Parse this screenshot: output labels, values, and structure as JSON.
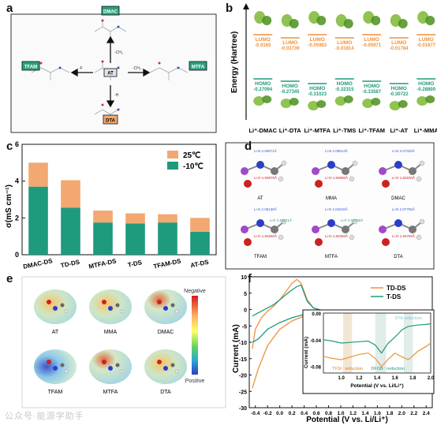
{
  "panels": {
    "a": {
      "label": "a",
      "center": "AT",
      "nodes": {
        "top": "DMAC",
        "left": "TFAM",
        "right": "MTFA",
        "bottom": "DTA"
      },
      "arrows": {
        "top": "-CH₃",
        "left": "-F",
        "right": "-CH₃",
        "bottom": "-H"
      }
    },
    "b": {
      "label": "b",
      "ylabel": "Energy (Hartree)",
      "lumo_label": "LUMO",
      "homo_label": "HOMO",
      "columns": [
        {
          "name": "Li⁺-DMAC",
          "lumo": "-0.0165",
          "homo": "-0.27094"
        },
        {
          "name": "Li⁺-DTA",
          "lumo": "-0.03739",
          "homo": "-0.27345"
        },
        {
          "name": "Li⁺-MTFA",
          "lumo": "-0.05983",
          "homo": "-0.31023"
        },
        {
          "name": "Li⁺-TMS",
          "lumo": "-0.01814",
          "homo": "-0.32315"
        },
        {
          "name": "Li⁺-TFAM",
          "lumo": "-0.05971",
          "homo": "-0.33587"
        },
        {
          "name": "Li⁺-AT",
          "lumo": "-0.01784",
          "homo": "-0.30722"
        },
        {
          "name": "Li⁺-MMA",
          "lumo": "-0.01677",
          "homo": "-0.28800"
        }
      ]
    },
    "c": {
      "label": "c",
      "ylabel": "σ(mS cm⁻¹)",
      "legend": [
        "25℃",
        "-10℃"
      ],
      "colors": {
        "warm": "#f2a870",
        "cold": "#1e9a7c"
      }
    },
    "d": {
      "label": "d",
      "molecules": [
        {
          "name": "AT",
          "annotations": [
            "Li-N 2.05971Å",
            "Li-O 1.83870Å"
          ]
        },
        {
          "name": "MMA",
          "annotations": [
            "Li-N 2.08513Å",
            "Li-O 1.83660Å"
          ]
        },
        {
          "name": "DMAC",
          "annotations": [
            "Li-N 2.07320Å",
            "Li-O 1.83230Å"
          ]
        },
        {
          "name": "TFAM",
          "annotations": [
            "Li-N 2.05138Å",
            "Li-F 2.01171Å",
            "Li-O 1.83260Å"
          ]
        },
        {
          "name": "MTFA",
          "annotations": [
            "Li-N 2.04016Å",
            "Li-F 2.00780Å",
            "Li-O 1.83260Å"
          ]
        },
        {
          "name": "DTA",
          "annotations": [
            "Li-N 2.07755Å",
            "Li-O 1.84762Å"
          ]
        }
      ]
    },
    "e": {
      "label": "e",
      "molecules": [
        "AT",
        "MMA",
        "DMAC",
        "TFAM",
        "MTFA",
        "DTA"
      ],
      "scale_top": "Negative",
      "scale_bottom": "Positive"
    },
    "f": {
      "label": "f",
      "ylabel": "Current (mA)",
      "xlabel": "Potential (V vs. Li/Li⁺)",
      "legend": [
        "TD-DS",
        "T-DS"
      ],
      "colors": {
        "td": "#f0913a",
        "t": "#1e9a7c"
      },
      "inset": {
        "ylabel": "Current (mA)",
        "xlabel": "Potential (V vs. Li/Li⁺)",
        "annotations": [
          "TFSI⁻ reduction",
          "DFOB⁻ reduction",
          "DTA reduction"
        ]
      }
    }
  },
  "watermark": "公众号·能源学助手",
  "chart_data": [
    {
      "type": "bar",
      "categories": [
        "DMAC-DS",
        "TD-DS",
        "MTFA-DS",
        "T-DS",
        "TFAM-DS",
        "AT-DS"
      ],
      "series": [
        {
          "name": "-10℃",
          "values": [
            3.7,
            2.55,
            1.75,
            1.7,
            1.75,
            1.25
          ]
        },
        {
          "name": "25℃",
          "values": [
            1.3,
            1.5,
            0.65,
            0.55,
            0.45,
            0.75
          ]
        }
      ],
      "stacked": true,
      "ylabel": "σ(mS cm⁻¹)",
      "ylim": [
        0,
        6
      ],
      "yticks": [
        0,
        2,
        4,
        6
      ],
      "legend": "top-right"
    },
    {
      "type": "line",
      "xlabel": "Potential (V vs. Li/Li⁺)",
      "ylabel": "Current (mA)",
      "xlim": [
        -0.5,
        2.5
      ],
      "ylim": [
        -30,
        10
      ],
      "xticks": [
        -0.4,
        -0.2,
        0.0,
        0.2,
        0.4,
        0.6,
        0.8,
        1.0,
        1.2,
        1.4,
        1.6,
        1.8,
        2.0,
        2.2,
        2.4
      ],
      "yticks": [
        -30,
        -25,
        -20,
        -15,
        -10,
        -5,
        0,
        5,
        10
      ],
      "legend": "top-right",
      "series": [
        {
          "name": "TD-DS",
          "x": [
            -0.45,
            -0.4,
            -0.3,
            -0.2,
            -0.1,
            0.0,
            0.1,
            0.2,
            0.28,
            0.35,
            0.45,
            0.55,
            0.7,
            1.0,
            1.5,
            2.0,
            2.0,
            1.5,
            1.0,
            0.6,
            0.4,
            0.2,
            0.0,
            -0.2,
            -0.35,
            -0.45
          ],
          "y": [
            -12,
            -6,
            -2.5,
            -0.5,
            1,
            3,
            5.5,
            8,
            9.2,
            8,
            3,
            0.5,
            -0.5,
            -0.5,
            -0.4,
            -0.3,
            -0.5,
            -0.6,
            -0.8,
            -1.2,
            -2,
            -3.5,
            -6,
            -11,
            -18,
            -24
          ]
        },
        {
          "name": "T-DS",
          "x": [
            -0.45,
            -0.4,
            -0.3,
            -0.2,
            -0.1,
            0.0,
            0.1,
            0.2,
            0.28,
            0.35,
            0.45,
            0.55,
            0.7,
            1.0,
            1.5,
            2.0,
            2.0,
            1.5,
            1.0,
            0.6,
            0.4,
            0.2,
            0.0,
            -0.2,
            -0.35,
            -0.45
          ],
          "y": [
            -2,
            -1.5,
            -0.5,
            0.5,
            1.5,
            3,
            4.5,
            6,
            7,
            7.5,
            2.5,
            0.5,
            -0.3,
            -0.4,
            -0.3,
            -0.2,
            -0.4,
            -0.5,
            -0.6,
            -1,
            -1.5,
            -2.5,
            -4,
            -6,
            -9,
            -10
          ]
        }
      ]
    },
    {
      "type": "line",
      "xlabel": "Potential (V vs. Li/Li⁺)",
      "ylabel": "Current (mA)",
      "xlim": [
        0.8,
        2.0
      ],
      "ylim": [
        -0.09,
        0.0
      ],
      "xticks": [
        1.0,
        1.2,
        1.4,
        1.6,
        1.8,
        2.0
      ],
      "yticks": [
        -0.08,
        -0.04,
        0.0
      ],
      "series": [
        {
          "name": "TD-DS",
          "x": [
            0.8,
            0.9,
            1.0,
            1.1,
            1.2,
            1.3,
            1.38,
            1.45,
            1.52,
            1.6,
            1.68,
            1.75,
            1.85,
            1.95,
            2.0
          ],
          "y": [
            -0.065,
            -0.068,
            -0.07,
            -0.066,
            -0.062,
            -0.06,
            -0.068,
            -0.08,
            -0.07,
            -0.06,
            -0.066,
            -0.07,
            -0.058,
            -0.05,
            -0.045
          ]
        },
        {
          "name": "T-DS",
          "x": [
            0.8,
            0.9,
            1.0,
            1.1,
            1.2,
            1.3,
            1.38,
            1.45,
            1.52,
            1.6,
            1.68,
            1.75,
            1.85,
            1.95,
            2.0
          ],
          "y": [
            -0.04,
            -0.042,
            -0.045,
            -0.044,
            -0.043,
            -0.042,
            -0.048,
            -0.06,
            -0.046,
            -0.036,
            -0.025,
            -0.02,
            -0.018,
            -0.017,
            -0.016
          ]
        }
      ]
    }
  ]
}
